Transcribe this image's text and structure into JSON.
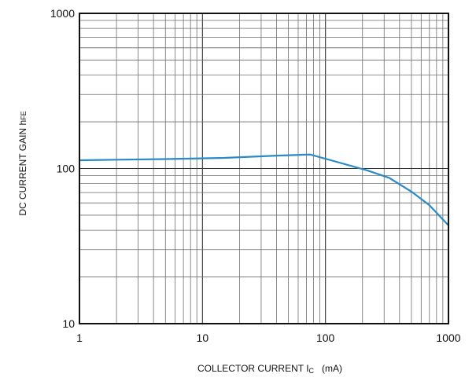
{
  "chart_data": {
    "type": "line",
    "x_scale": "log",
    "y_scale": "log",
    "xlim": [
      1,
      1000
    ],
    "ylim": [
      10,
      1000
    ],
    "grid": true,
    "x_ticks": [
      "1",
      "10",
      "100",
      "1000"
    ],
    "y_ticks": [
      "10",
      "100",
      "1000"
    ],
    "xlabel": "COLLECTOR CURRENT  I",
    "xlabel_sub": "C",
    "xlabel_unit": "(mA)",
    "ylabel": "DC CURRENT GAIN  h",
    "ylabel_sub": "FE",
    "series": [
      {
        "color": "#2a8ac8",
        "x": [
          1,
          2,
          5,
          15,
          40,
          75,
          120,
          220,
          330,
          500,
          700,
          1000
        ],
        "y": [
          113,
          114,
          115,
          117,
          121,
          123,
          111,
          97,
          87,
          71,
          58,
          43
        ]
      }
    ]
  }
}
